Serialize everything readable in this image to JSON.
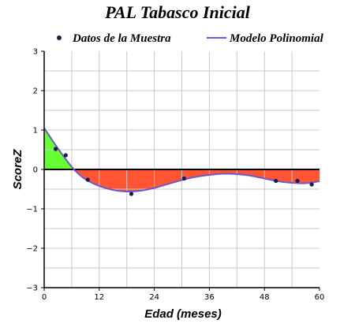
{
  "chart_data": {
    "type": "line",
    "title": "PAL Tabasco Inicial",
    "xlabel": "Edad (meses)",
    "ylabel": "ScoreZ",
    "xlim": [
      0,
      60
    ],
    "ylim": [
      -3,
      3
    ],
    "x_ticks": [
      0,
      12,
      24,
      36,
      48,
      60
    ],
    "y_ticks": [
      -3,
      -2,
      -1,
      0,
      1,
      2,
      3
    ],
    "x_tick_labels": [
      "0",
      "12",
      "24",
      "36",
      "48",
      "60"
    ],
    "y_tick_labels": [
      "−3",
      "−2",
      "−1",
      "0",
      "1",
      "2",
      "3"
    ],
    "grid": true,
    "legend": {
      "position": "top",
      "entries": [
        {
          "label": "Datos de la Muestra",
          "kind": "points",
          "color": "#1a1a4e"
        },
        {
          "label": "Modelo Polinomial",
          "kind": "line",
          "color": "#6a5acd"
        }
      ]
    },
    "series": [
      {
        "name": "Datos de la Muestra",
        "kind": "scatter",
        "color": "#1a1a4e",
        "points": [
          {
            "x": 2.5,
            "y": 0.52
          },
          {
            "x": 4.7,
            "y": 0.36
          },
          {
            "x": 9.5,
            "y": -0.26
          },
          {
            "x": 19,
            "y": -0.62
          },
          {
            "x": 30.5,
            "y": -0.23
          },
          {
            "x": 50.5,
            "y": -0.29
          },
          {
            "x": 55.2,
            "y": -0.29
          },
          {
            "x": 58.3,
            "y": -0.38
          }
        ]
      },
      {
        "name": "Modelo Polinomial",
        "kind": "line",
        "color": "#6a5acd",
        "points": [
          {
            "x": 0,
            "y": 1.05
          },
          {
            "x": 2,
            "y": 0.7
          },
          {
            "x": 4,
            "y": 0.37
          },
          {
            "x": 6.5,
            "y": 0.0
          },
          {
            "x": 9,
            "y": -0.25
          },
          {
            "x": 12,
            "y": -0.42
          },
          {
            "x": 15,
            "y": -0.52
          },
          {
            "x": 18,
            "y": -0.56
          },
          {
            "x": 21,
            "y": -0.54
          },
          {
            "x": 24,
            "y": -0.47
          },
          {
            "x": 27,
            "y": -0.37
          },
          {
            "x": 30,
            "y": -0.27
          },
          {
            "x": 33,
            "y": -0.19
          },
          {
            "x": 36,
            "y": -0.14
          },
          {
            "x": 39,
            "y": -0.11
          },
          {
            "x": 42,
            "y": -0.12
          },
          {
            "x": 45,
            "y": -0.16
          },
          {
            "x": 48,
            "y": -0.23
          },
          {
            "x": 51,
            "y": -0.3
          },
          {
            "x": 54,
            "y": -0.34
          },
          {
            "x": 57,
            "y": -0.35
          },
          {
            "x": 60,
            "y": -0.3
          }
        ]
      }
    ],
    "fill_colors": {
      "above_zero": "#66ff33",
      "below_zero": "#ff5533"
    }
  }
}
